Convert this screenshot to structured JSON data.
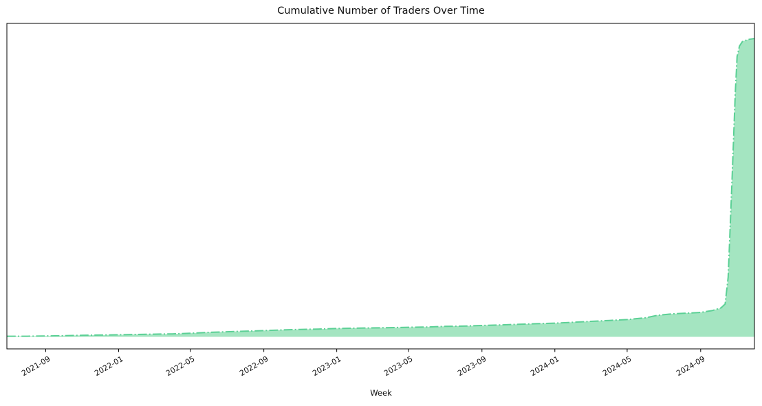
{
  "figure": {
    "title": "Cumulative Number of Traders Over Time",
    "x_axis_label": "Week"
  },
  "colors": {
    "line_green": "#5bd095",
    "fill_green": "#a4e5c1",
    "axis_black": "#000000",
    "text": "#111111"
  },
  "chart_data": {
    "type": "area",
    "title": "Cumulative Number of Traders Over Time",
    "xlabel": "Week",
    "ylabel": "",
    "line_style": "dash-dot",
    "legend": "none",
    "grid": false,
    "y_axis_note": "no y-axis ticks or labels shown; values normalized so final cumulative total = 1.0",
    "x_range": [
      "2021-06-28",
      "2024-11-30"
    ],
    "x_ticks": [
      {
        "label": "2021-09",
        "date": "2021-09-01"
      },
      {
        "label": "2022-01",
        "date": "2022-01-01"
      },
      {
        "label": "2022-05",
        "date": "2022-05-01"
      },
      {
        "label": "2022-09",
        "date": "2022-09-01"
      },
      {
        "label": "2023-01",
        "date": "2023-01-01"
      },
      {
        "label": "2023-05",
        "date": "2023-05-01"
      },
      {
        "label": "2023-09",
        "date": "2023-09-01"
      },
      {
        "label": "2024-01",
        "date": "2024-01-01"
      },
      {
        "label": "2024-05",
        "date": "2024-05-01"
      },
      {
        "label": "2024-09",
        "date": "2024-09-01"
      }
    ],
    "series": [
      {
        "name": "cumulative_traders_normalized",
        "points": [
          [
            "2021-06-28",
            0.002
          ],
          [
            "2021-08-01",
            0.002
          ],
          [
            "2021-09-01",
            0.003
          ],
          [
            "2021-10-01",
            0.004
          ],
          [
            "2021-11-01",
            0.005
          ],
          [
            "2021-12-01",
            0.006
          ],
          [
            "2022-01-01",
            0.007
          ],
          [
            "2022-02-01",
            0.008
          ],
          [
            "2022-03-01",
            0.009
          ],
          [
            "2022-04-01",
            0.01
          ],
          [
            "2022-05-01",
            0.012
          ],
          [
            "2022-06-01",
            0.015
          ],
          [
            "2022-07-01",
            0.017
          ],
          [
            "2022-08-01",
            0.019
          ],
          [
            "2022-09-01",
            0.021
          ],
          [
            "2022-10-01",
            0.023
          ],
          [
            "2022-11-01",
            0.025
          ],
          [
            "2022-12-01",
            0.026
          ],
          [
            "2023-01-01",
            0.028
          ],
          [
            "2023-02-01",
            0.029
          ],
          [
            "2023-03-01",
            0.03
          ],
          [
            "2023-04-01",
            0.031
          ],
          [
            "2023-05-01",
            0.032
          ],
          [
            "2023-06-01",
            0.033
          ],
          [
            "2023-07-01",
            0.035
          ],
          [
            "2023-08-01",
            0.036
          ],
          [
            "2023-09-01",
            0.038
          ],
          [
            "2023-10-01",
            0.04
          ],
          [
            "2023-11-01",
            0.042
          ],
          [
            "2023-12-01",
            0.044
          ],
          [
            "2024-01-01",
            0.046
          ],
          [
            "2024-02-01",
            0.049
          ],
          [
            "2024-03-01",
            0.052
          ],
          [
            "2024-04-01",
            0.055
          ],
          [
            "2024-05-01",
            0.058
          ],
          [
            "2024-06-01",
            0.064
          ],
          [
            "2024-06-20",
            0.072
          ],
          [
            "2024-07-15",
            0.077
          ],
          [
            "2024-08-15",
            0.08
          ],
          [
            "2024-09-01",
            0.082
          ],
          [
            "2024-09-20",
            0.088
          ],
          [
            "2024-10-05",
            0.097
          ],
          [
            "2024-10-12",
            0.11
          ],
          [
            "2024-10-17",
            0.2
          ],
          [
            "2024-10-20",
            0.35
          ],
          [
            "2024-10-23",
            0.5
          ],
          [
            "2024-10-26",
            0.66
          ],
          [
            "2024-10-29",
            0.82
          ],
          [
            "2024-11-01",
            0.94
          ],
          [
            "2024-11-05",
            0.975
          ],
          [
            "2024-11-10",
            0.99
          ],
          [
            "2024-11-20",
            0.997
          ],
          [
            "2024-11-30",
            1.0
          ]
        ]
      }
    ]
  }
}
